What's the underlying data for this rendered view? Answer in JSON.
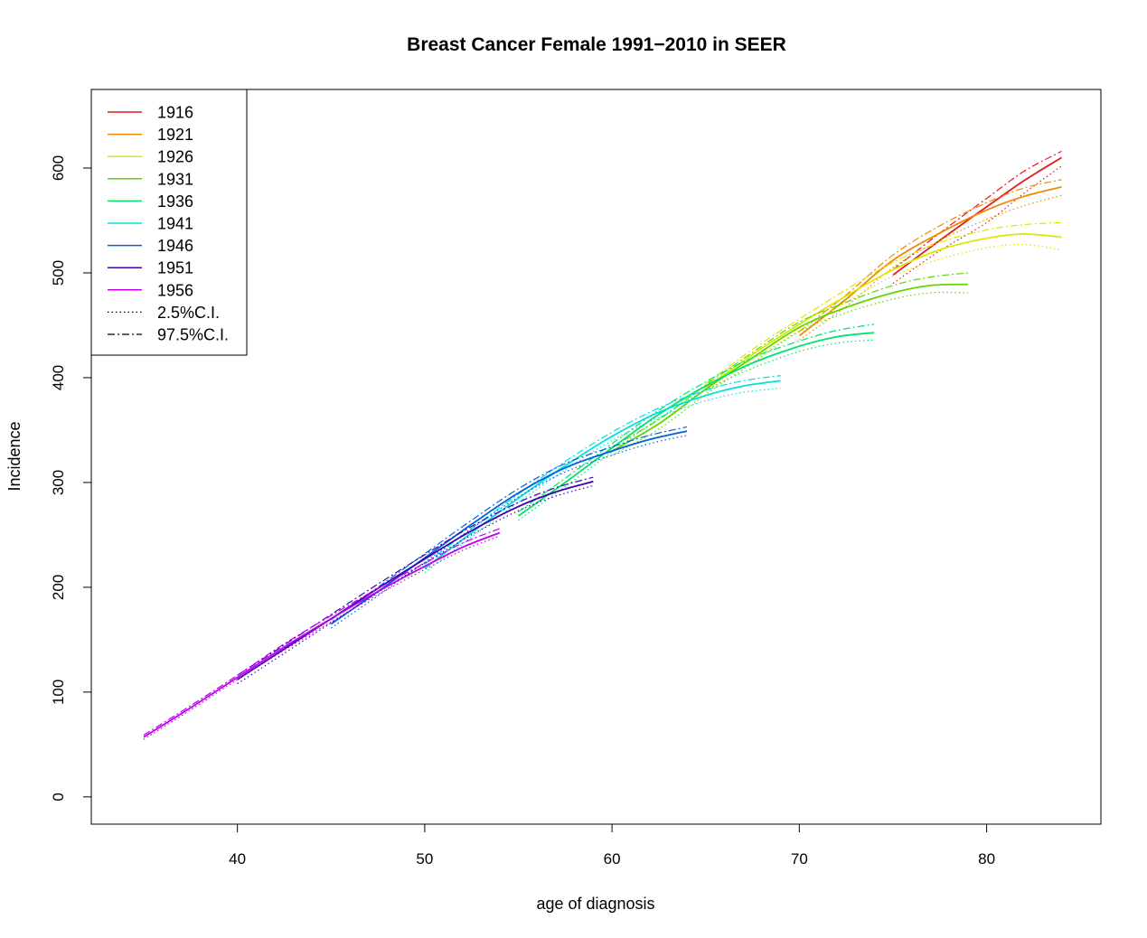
{
  "chart_data": {
    "type": "line",
    "title": "Breast Cancer Female 1991−2010 in SEER",
    "xlabel": "age of diagnosis",
    "ylabel": "Incidence",
    "xlim": [
      32.2,
      86.1
    ],
    "ylim": [
      -26,
      675
    ],
    "xticks": [
      "40",
      "50",
      "60",
      "70",
      "80"
    ],
    "yticks": [
      "0",
      "100",
      "200",
      "300",
      "400",
      "500",
      "600"
    ],
    "grid": false,
    "legend_position": "top-left",
    "legend": [
      "1916",
      "1921",
      "1926",
      "1931",
      "1936",
      "1941",
      "1946",
      "1951",
      "1956",
      "2.5%C.I.",
      "97.5%C.I."
    ],
    "ci_lower_label": "2.5%C.I.",
    "ci_upper_label": "97.5%C.I.",
    "series": [
      {
        "name": "1916",
        "color": "#e41a1c",
        "x": [
          75,
          77.5,
          80,
          82,
          84
        ],
        "y": [
          498,
          531,
          563,
          588,
          610
        ],
        "lower": [
          490,
          521,
          548,
          576,
          602
        ],
        "upper": [
          503,
          538,
          571,
          597,
          616
        ]
      },
      {
        "name": "1921",
        "color": "#f08a00",
        "x": [
          70,
          72.5,
          75,
          77.5,
          80,
          82,
          84
        ],
        "y": [
          440,
          475,
          512,
          538,
          560,
          573,
          582
        ],
        "lower": [
          436,
          468,
          505,
          531,
          551,
          564,
          574
        ],
        "upper": [
          444,
          479,
          517,
          545,
          567,
          581,
          589
        ]
      },
      {
        "name": "1926",
        "color": "#dbe800",
        "x": [
          65,
          67.5,
          70,
          72.5,
          75,
          77.5,
          80,
          82,
          84
        ],
        "y": [
          390,
          422,
          451,
          478,
          503,
          522,
          533,
          537,
          534
        ],
        "lower": [
          386,
          417,
          445,
          472,
          497,
          513,
          524,
          527,
          522
        ],
        "upper": [
          394,
          427,
          456,
          484,
          510,
          529,
          541,
          546,
          548
        ]
      },
      {
        "name": "1931",
        "color": "#5ed700",
        "x": [
          60,
          62.5,
          65,
          67.5,
          70,
          72.5,
          75,
          77,
          79
        ],
        "y": [
          330,
          356,
          389,
          419,
          448,
          467,
          481,
          488,
          489
        ],
        "lower": [
          326,
          351,
          384,
          414,
          444,
          462,
          475,
          481,
          481
        ],
        "upper": [
          334,
          360,
          393,
          424,
          453,
          472,
          488,
          496,
          500
        ]
      },
      {
        "name": "1936",
        "color": "#00e26a",
        "x": [
          55,
          57.5,
          60,
          62.5,
          65,
          67.5,
          70,
          72,
          74
        ],
        "y": [
          268,
          300,
          333,
          365,
          392,
          414,
          430,
          439,
          443
        ],
        "lower": [
          264,
          296,
          329,
          361,
          388,
          409,
          425,
          433,
          436
        ],
        "upper": [
          272,
          304,
          337,
          369,
          396,
          419,
          435,
          445,
          451
        ]
      },
      {
        "name": "1941",
        "color": "#00e0e0",
        "x": [
          50,
          52.5,
          55,
          57.5,
          60,
          62.5,
          65,
          67,
          69
        ],
        "y": [
          218,
          252,
          285,
          316,
          344,
          367,
          383,
          392,
          397
        ],
        "lower": [
          214,
          248,
          281,
          312,
          340,
          362,
          378,
          386,
          390
        ],
        "upper": [
          222,
          256,
          289,
          320,
          348,
          371,
          388,
          397,
          402
        ]
      },
      {
        "name": "1946",
        "color": "#0060d8",
        "x": [
          45,
          47.5,
          50,
          52.5,
          55,
          57.5,
          60,
          62,
          64
        ],
        "y": [
          165,
          196,
          228,
          260,
          290,
          314,
          330,
          341,
          349
        ],
        "lower": [
          161,
          192,
          224,
          256,
          286,
          310,
          326,
          337,
          345
        ],
        "upper": [
          169,
          200,
          232,
          264,
          294,
          318,
          334,
          345,
          353
        ]
      },
      {
        "name": "1951",
        "color": "#4000b0",
        "x": [
          40,
          42.5,
          45,
          47.5,
          50,
          52.5,
          55,
          57,
          59
        ],
        "y": [
          112,
          141,
          170,
          199,
          227,
          254,
          277,
          291,
          301
        ],
        "lower": [
          108,
          137,
          166,
          195,
          223,
          250,
          273,
          287,
          297
        ],
        "upper": [
          116,
          145,
          174,
          203,
          231,
          258,
          281,
          295,
          305
        ]
      },
      {
        "name": "1956",
        "color": "#c000f0",
        "x": [
          35,
          37.5,
          40,
          42.5,
          45,
          47.5,
          50,
          52,
          54
        ],
        "y": [
          57,
          85,
          114,
          143,
          170,
          196,
          220,
          238,
          252
        ],
        "lower": [
          55,
          83,
          112,
          140,
          167,
          193,
          217,
          235,
          249
        ],
        "upper": [
          59,
          87,
          116,
          146,
          173,
          199,
          223,
          242,
          256
        ]
      }
    ]
  }
}
